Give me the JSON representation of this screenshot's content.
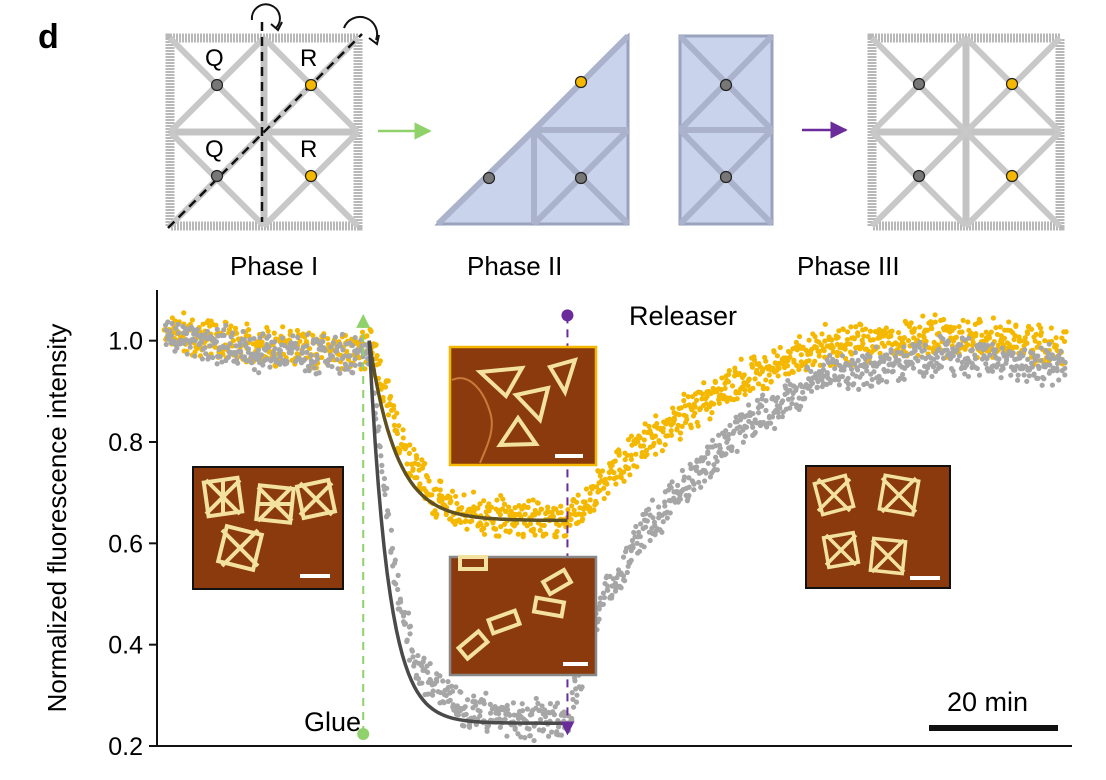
{
  "panel_letter": "d",
  "diagram": {
    "site_labels": [
      "Q",
      "R",
      "Q",
      "R"
    ],
    "phases": [
      "Phase I",
      "Phase II",
      "Phase III"
    ]
  },
  "colors": {
    "orange": "#f5b800",
    "gray": "#a6a6a6",
    "fit_dark": "#4a4a4a",
    "glue_green": "#8fd16a",
    "releaser_purple": "#6a2c9a",
    "tile_blue": "#c9d3ec",
    "afm_brown": "#8a3a0c"
  },
  "chart_data": {
    "type": "scatter",
    "xlabel": "",
    "ylabel": "Normalized fluorescence intensity",
    "y_ticks": [
      "0.2",
      "0.4",
      "0.6",
      "0.8",
      "1.0"
    ],
    "ylim": [
      0.2,
      1.1
    ],
    "x_scale_bar": "20 min",
    "x_range_min": [
      0,
      150
    ],
    "glue_time": 33,
    "releaser_time": 67,
    "series": [
      {
        "color": "#f5b800",
        "values": [
          {
            "x": 0,
            "y": 1.02
          },
          {
            "x": 15,
            "y": 0.99
          },
          {
            "x": 33,
            "y": 0.98
          },
          {
            "x": 34,
            "y": 1.0
          },
          {
            "x": 40,
            "y": 0.78
          },
          {
            "x": 45,
            "y": 0.69
          },
          {
            "x": 50,
            "y": 0.66
          },
          {
            "x": 60,
            "y": 0.65
          },
          {
            "x": 67,
            "y": 0.65
          },
          {
            "x": 80,
            "y": 0.8
          },
          {
            "x": 95,
            "y": 0.92
          },
          {
            "x": 110,
            "y": 0.99
          },
          {
            "x": 130,
            "y": 1.01
          },
          {
            "x": 150,
            "y": 0.99
          }
        ]
      },
      {
        "color": "#a6a6a6",
        "values": [
          {
            "x": 0,
            "y": 1.01
          },
          {
            "x": 15,
            "y": 0.98
          },
          {
            "x": 33,
            "y": 0.97
          },
          {
            "x": 34,
            "y": 1.0
          },
          {
            "x": 38,
            "y": 0.55
          },
          {
            "x": 42,
            "y": 0.35
          },
          {
            "x": 50,
            "y": 0.27
          },
          {
            "x": 60,
            "y": 0.25
          },
          {
            "x": 67,
            "y": 0.25
          },
          {
            "x": 72,
            "y": 0.47
          },
          {
            "x": 80,
            "y": 0.63
          },
          {
            "x": 95,
            "y": 0.82
          },
          {
            "x": 110,
            "y": 0.93
          },
          {
            "x": 130,
            "y": 0.97
          },
          {
            "x": 150,
            "y": 0.95
          }
        ]
      }
    ],
    "annotations": [
      "Glue",
      "Releaser"
    ]
  }
}
